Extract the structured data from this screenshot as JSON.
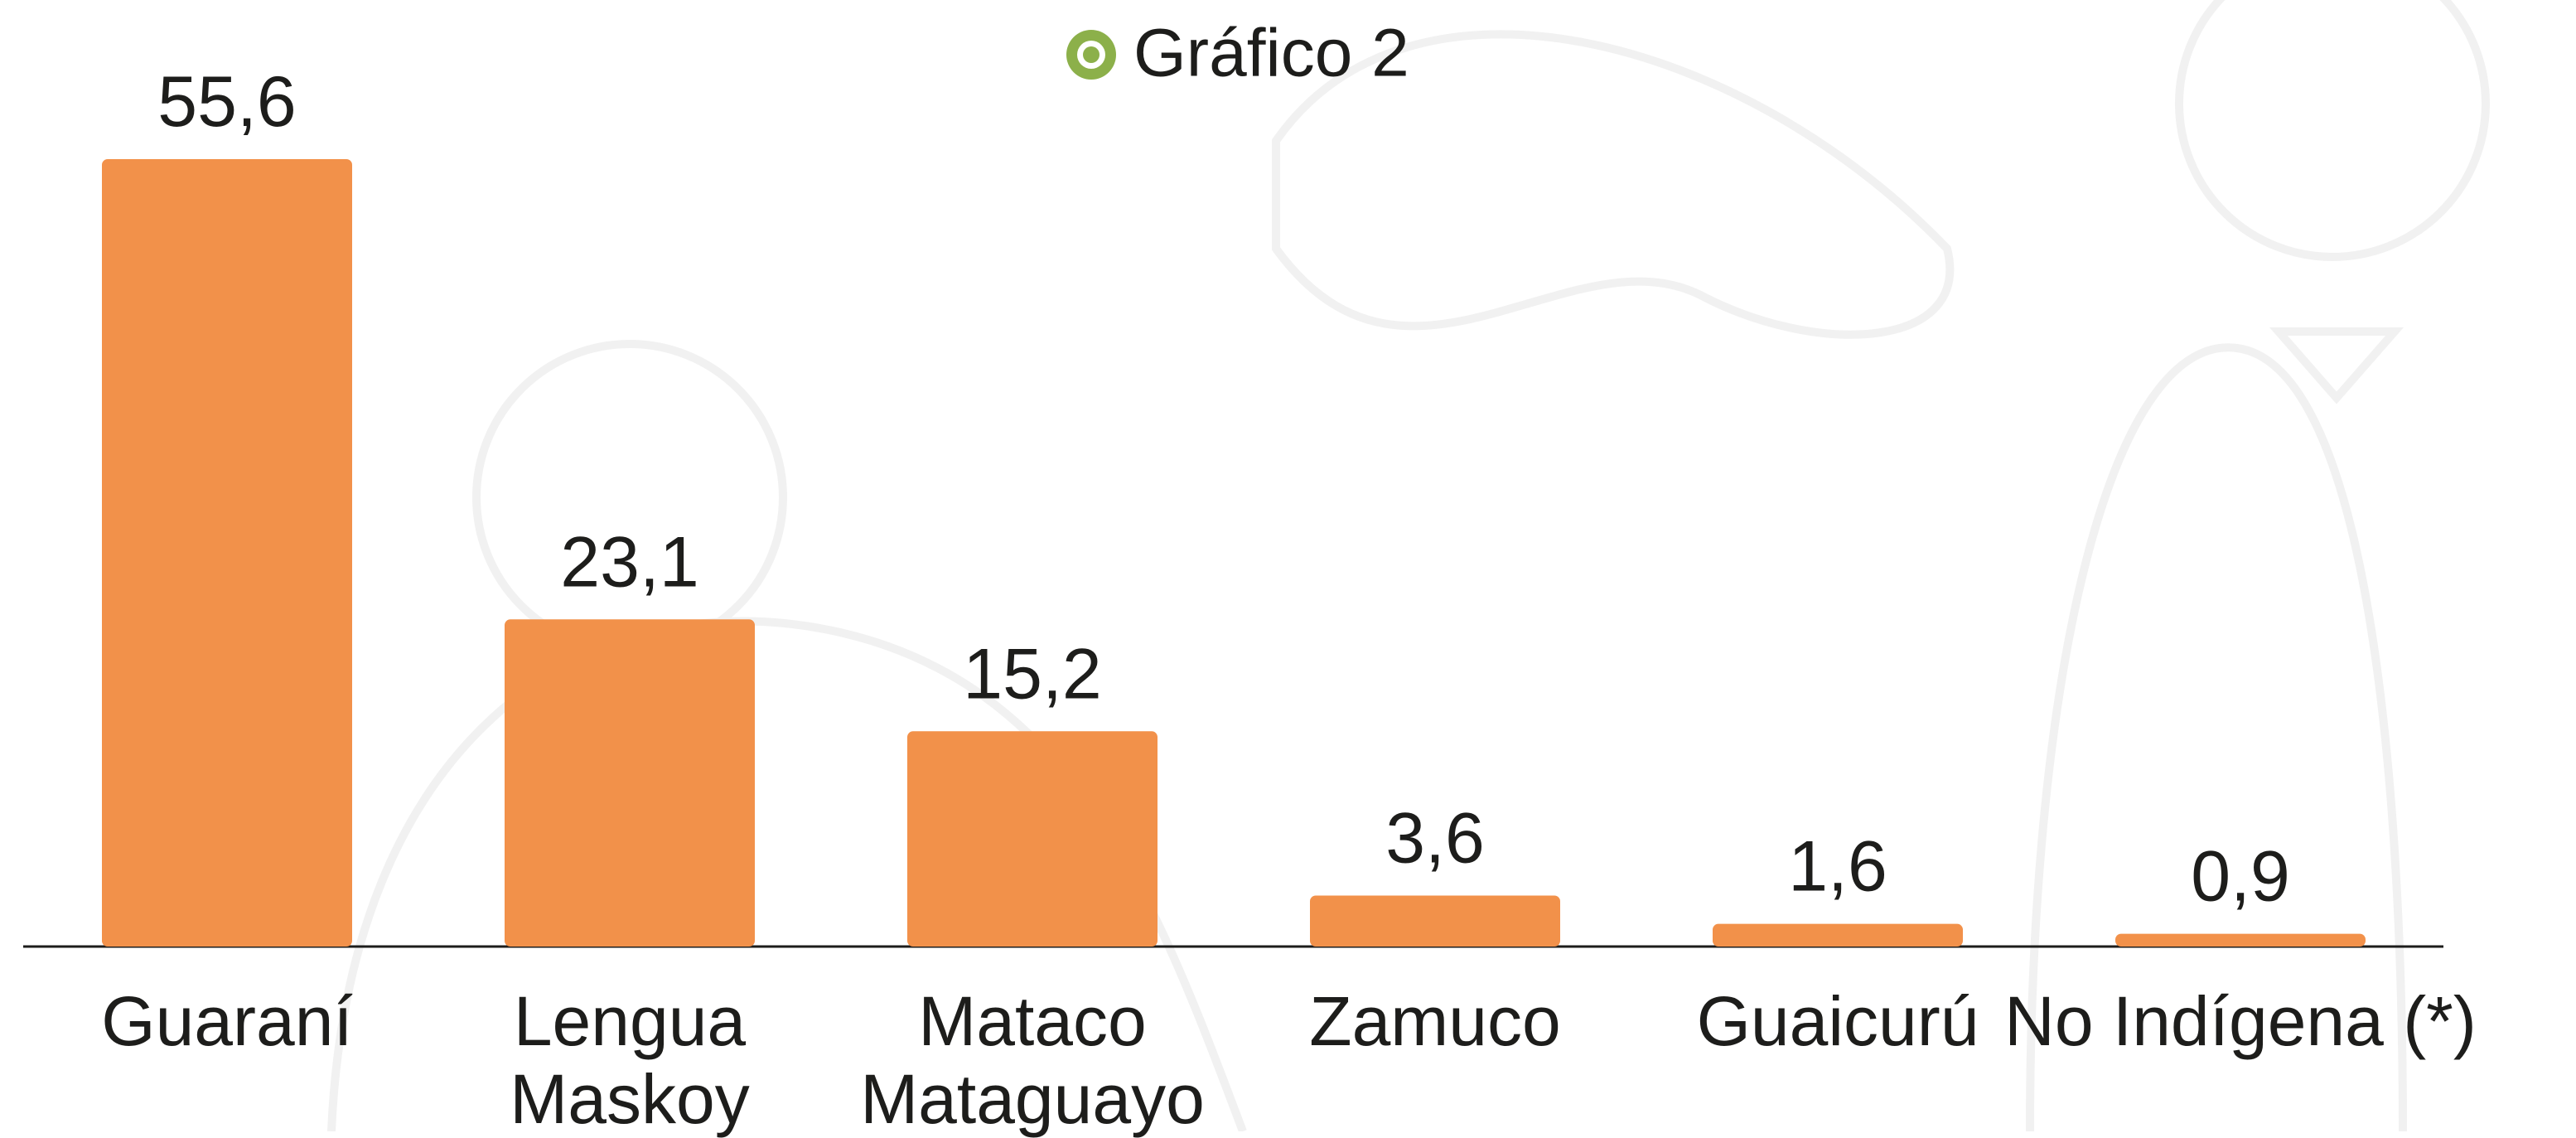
{
  "chart_data": {
    "type": "bar",
    "title": "Gráfico 2",
    "categories": [
      "Guaraní",
      "Lengua\nMaskoy",
      "Mataco\nMataguayo",
      "Zamuco",
      "Guaicurú",
      "No Indígena (*)"
    ],
    "values": [
      55.6,
      23.1,
      15.2,
      3.6,
      1.6,
      0.9
    ],
    "value_labels": [
      "55,6",
      "23,1",
      "15,2",
      "3,6",
      "1,6",
      "0,9"
    ],
    "color": "#f2914a"
  }
}
